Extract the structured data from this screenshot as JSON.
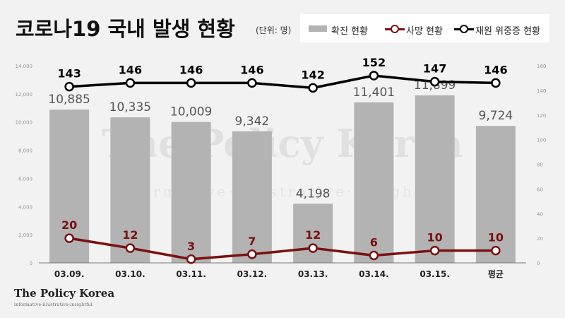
{
  "header": {
    "title": "코로나19 국내 발생 현황",
    "unit": "(단위: 명)"
  },
  "legend": {
    "confirmed": "확진 현황",
    "deaths": "사망 현황",
    "hospitalized": "재원 위중증 현황"
  },
  "logo": {
    "main": "The Policy Korea",
    "sub": "informative·illustrative·insightful",
    "watermark": "The Policy Korea",
    "watermark_sub": "informative·illustrative·insightful"
  },
  "colors": {
    "bar": "#b3b3b3",
    "deaths": "#7a1012",
    "hospitalized": "#000000",
    "background": "#f2f2f2"
  },
  "chart_data": {
    "type": "bar",
    "categories": [
      "03.09.",
      "03.10.",
      "03.11.",
      "03.12.",
      "03.13.",
      "03.14.",
      "03.15.",
      "평균"
    ],
    "series": [
      {
        "name": "확진 현황",
        "type": "bar",
        "axis": "left",
        "values": [
          10885,
          10335,
          10009,
          9342,
          4198,
          11401,
          11899,
          9724
        ],
        "labels": [
          "10,885",
          "10,335",
          "10,009",
          "9,342",
          "4,198",
          "11,401",
          "11,899",
          "9,724"
        ]
      },
      {
        "name": "사망 현황",
        "type": "line",
        "axis": "right",
        "values": [
          20,
          12,
          3,
          7,
          12,
          6,
          10,
          10
        ]
      },
      {
        "name": "재원 위중증 현황",
        "type": "line",
        "axis": "right",
        "values": [
          143,
          146,
          146,
          146,
          142,
          152,
          147,
          146
        ]
      }
    ],
    "y_left": {
      "min": 0,
      "max": 14000,
      "ticks": [
        "0",
        "2,000",
        "4,000",
        "6,000",
        "8,000",
        "10,000",
        "12,000",
        "14,000"
      ]
    },
    "y_right": {
      "min": 0,
      "max": 160,
      "ticks": [
        "0",
        "20",
        "40",
        "60",
        "80",
        "100",
        "120",
        "140",
        "160"
      ]
    },
    "grid": false
  }
}
